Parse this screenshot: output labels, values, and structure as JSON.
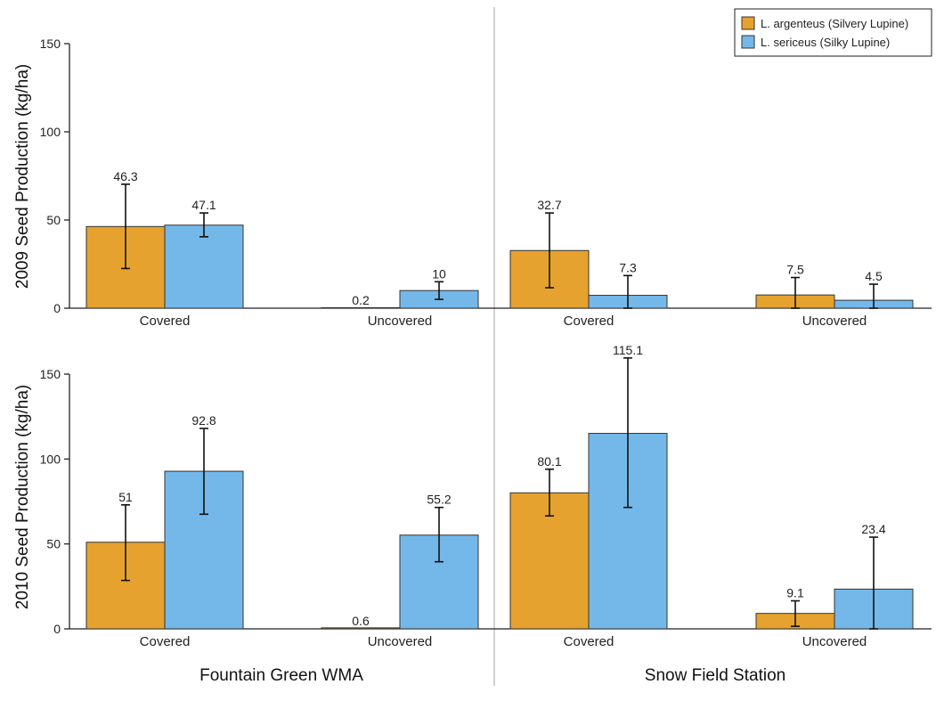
{
  "chart_data": {
    "type": "bar",
    "colors": {
      "argenteus": "#E6A22E",
      "sericeus": "#74B8E9"
    },
    "legend": {
      "placement": "top-right",
      "entries": [
        {
          "name": "L. argenteus (Silvery Lupine)",
          "color": "#E6A22E"
        },
        {
          "name": "L. sericeus (Silky Lupine)",
          "color": "#74B8E9"
        }
      ]
    },
    "sites": [
      "Fountain Green WMA",
      "Snow Field Station"
    ],
    "rows": [
      {
        "ylabel": "2009 Seed Production (kg/ha)",
        "ylim": [
          0,
          150
        ],
        "yticks": [
          0,
          50,
          100,
          150
        ]
      },
      {
        "ylabel": "2010 Seed Production (kg/ha)",
        "ylim": [
          0,
          150
        ],
        "yticks": [
          0,
          50,
          100,
          150
        ]
      }
    ],
    "categories": [
      "Covered",
      "Uncovered"
    ],
    "panels": [
      {
        "year": "2009",
        "site": "Fountain Green WMA",
        "series": [
          {
            "name": "L. argenteus (Silvery Lupine)",
            "values": [
              46.3,
              0.2
            ],
            "error_low": [
              22.5,
              null
            ],
            "error_high": [
              70.3,
              null
            ],
            "labels": [
              "46.3",
              "0.2"
            ]
          },
          {
            "name": "L. sericeus (Silky Lupine)",
            "values": [
              47.1,
              10
            ],
            "error_low": [
              40.5,
              5
            ],
            "error_high": [
              54,
              15
            ],
            "labels": [
              "47.1",
              "10"
            ]
          }
        ]
      },
      {
        "year": "2009",
        "site": "Snow Field Station",
        "series": [
          {
            "name": "L. argenteus (Silvery Lupine)",
            "values": [
              32.7,
              7.5
            ],
            "error_low": [
              11.6,
              0
            ],
            "error_high": [
              54,
              17.4
            ],
            "labels": [
              "32.7",
              "7.5"
            ]
          },
          {
            "name": "L. sericeus (Silky Lupine)",
            "values": [
              7.3,
              4.5
            ],
            "error_low": [
              0,
              0
            ],
            "error_high": [
              18.5,
              13.6
            ],
            "labels": [
              "7.3",
              "4.5"
            ]
          }
        ]
      },
      {
        "year": "2010",
        "site": "Fountain Green WMA",
        "series": [
          {
            "name": "L. argenteus (Silvery Lupine)",
            "values": [
              51,
              0.6
            ],
            "error_low": [
              28.5,
              null
            ],
            "error_high": [
              73,
              null
            ],
            "labels": [
              "51",
              "0.6"
            ]
          },
          {
            "name": "L. sericeus (Silky Lupine)",
            "values": [
              92.8,
              55.2
            ],
            "error_low": [
              67.5,
              39.5
            ],
            "error_high": [
              118,
              71.5
            ],
            "labels": [
              "92.8",
              "55.2"
            ]
          }
        ]
      },
      {
        "year": "2010",
        "site": "Snow Field Station",
        "series": [
          {
            "name": "L. argenteus (Silvery Lupine)",
            "values": [
              80.1,
              9.1
            ],
            "error_low": [
              66.5,
              1.5
            ],
            "error_high": [
              94,
              16.5
            ],
            "labels": [
              "80.1",
              "9.1"
            ]
          },
          {
            "name": "L. sericeus (Silky Lupine)",
            "values": [
              115.1,
              23.4
            ],
            "error_low": [
              71.5,
              0
            ],
            "error_high": [
              159.5,
              54
            ],
            "labels": [
              "115.1",
              "23.4"
            ]
          }
        ]
      }
    ]
  }
}
